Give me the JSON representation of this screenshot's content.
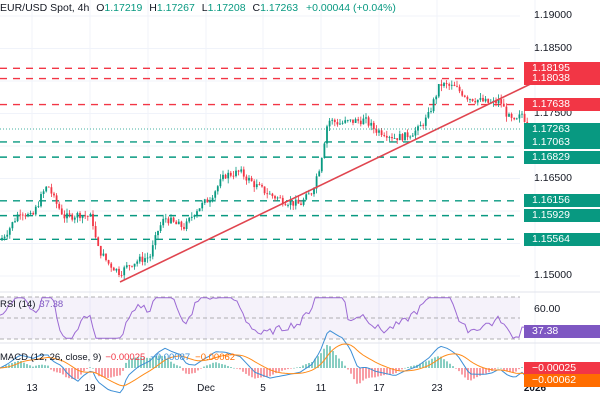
{
  "header": {
    "symbol": "EUR/USD Spot, 4h",
    "open_label": "O",
    "open": "1.17219",
    "high_label": "H",
    "high": "1.17267",
    "low_label": "L",
    "low": "1.17208",
    "close_label": "C",
    "close": "1.17263",
    "change": "+0.00044 (+0.04%)"
  },
  "price_axis": {
    "ticks": [
      "1.19000",
      "1.18500",
      "1.17500",
      "1.16500",
      "1.15000"
    ]
  },
  "levels": {
    "r1": "1.18195",
    "r2": "1.18038",
    "r3": "1.17638",
    "current": "1.17263",
    "s1": "1.17063",
    "s2": "1.16829",
    "s3": "1.16156",
    "s4": "1.15929",
    "s5": "1.15564"
  },
  "rsi": {
    "label": "RSI (14)",
    "value": "37.38",
    "axis_tick": "60.00",
    "tag": "37.38"
  },
  "macd": {
    "label": "MACD (12, 26, close, 9)",
    "hist": "−0.00025",
    "macd": "−0.00087",
    "signal": "−0.00062",
    "tag_hist": "−0.00025",
    "tag_signal": "−0.00062"
  },
  "x_axis": {
    "ticks": [
      "13",
      "19",
      "25",
      "Dec",
      "5",
      "11",
      "17",
      "23",
      "2026"
    ]
  },
  "colors": {
    "up": "#089981",
    "down": "#f23645",
    "resistance": "#f23645",
    "support": "#089981",
    "trendline": "#e0454f",
    "rsi": "#9c6ad4",
    "macd": "#3d8fd6",
    "signal": "#ff8c1a"
  },
  "chart_data": {
    "type": "candlestick",
    "title": "EUR/USD Spot, 4h",
    "ylim": [
      1.1475,
      1.1925
    ],
    "x_ticks": [
      "13",
      "19",
      "25",
      "Dec",
      "5",
      "11",
      "17",
      "23",
      "2026"
    ],
    "horizontal_levels": {
      "resistance": [
        1.18195,
        1.18038,
        1.17638
      ],
      "support": [
        1.17063,
        1.16829,
        1.16156,
        1.15929,
        1.15564
      ]
    },
    "last_price": 1.17263,
    "ohlc_last": {
      "open": 1.17219,
      "high": 1.17267,
      "low": 1.17208,
      "close": 1.17263,
      "change": 0.00044,
      "change_pct": 0.04
    },
    "trendline": {
      "from": {
        "x": "~22 Nov",
        "y": 1.1495
      },
      "to": {
        "x": "~2 Jan",
        "y": 1.1785
      }
    },
    "indicators": {
      "rsi_14": {
        "value": 37.38,
        "levels": [
          70,
          60,
          50,
          40,
          30
        ]
      },
      "macd_12_26_9": {
        "histogram": -0.00025,
        "macd": -0.00087,
        "signal": -0.00062
      }
    }
  }
}
